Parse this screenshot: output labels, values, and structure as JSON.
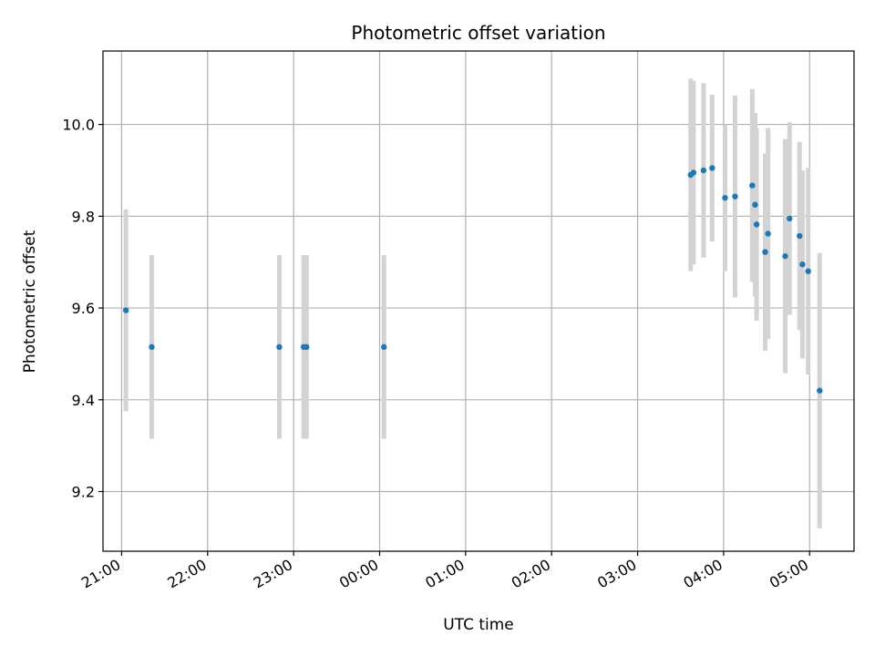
{
  "chart_data": {
    "type": "scatter",
    "title": "Photometric offset variation",
    "xlabel": "UTC time",
    "ylabel": "Photometric offset",
    "x_axis": "time",
    "xlim": [
      "20:47",
      "05:31"
    ],
    "ylim": [
      9.07,
      10.16
    ],
    "xticks": [
      "21:00",
      "22:00",
      "23:00",
      "00:00",
      "01:00",
      "02:00",
      "03:00",
      "04:00",
      "05:00"
    ],
    "yticks": [
      9.2,
      9.4,
      9.6,
      9.8,
      10.0
    ],
    "ytick_labels": [
      "9.2",
      "9.4",
      "9.6",
      "9.8",
      "10.0"
    ],
    "grid": true,
    "legend": "none",
    "colors": {
      "marker": "#1f77b4",
      "errorbar": "#d3d3d3",
      "grid": "#b0b0b0"
    },
    "points": [
      {
        "x": "21:03",
        "y": 9.595,
        "yerr": 0.22
      },
      {
        "x": "21:21",
        "y": 9.515,
        "yerr": 0.2
      },
      {
        "x": "22:50",
        "y": 9.515,
        "yerr": 0.2
      },
      {
        "x": "23:07",
        "y": 9.515,
        "yerr": 0.2
      },
      {
        "x": "23:09",
        "y": 9.515,
        "yerr": 0.2
      },
      {
        "x": "00:03",
        "y": 9.515,
        "yerr": 0.2
      },
      {
        "x": "03:37",
        "y": 9.89,
        "yerr": 0.21
      },
      {
        "x": "03:39",
        "y": 9.895,
        "yerr": 0.2
      },
      {
        "x": "03:46",
        "y": 9.9,
        "yerr": 0.19
      },
      {
        "x": "03:52",
        "y": 9.905,
        "yerr": 0.16
      },
      {
        "x": "04:01",
        "y": 9.84,
        "yerr": 0.16
      },
      {
        "x": "04:08",
        "y": 9.843,
        "yerr": 0.22
      },
      {
        "x": "04:20",
        "y": 9.867,
        "yerr": 0.21
      },
      {
        "x": "04:22",
        "y": 9.825,
        "yerr": 0.2
      },
      {
        "x": "04:23",
        "y": 9.782,
        "yerr": 0.21
      },
      {
        "x": "04:29",
        "y": 9.722,
        "yerr": 0.215
      },
      {
        "x": "04:31",
        "y": 9.762,
        "yerr": 0.23
      },
      {
        "x": "04:43",
        "y": 9.713,
        "yerr": 0.255
      },
      {
        "x": "04:46",
        "y": 9.795,
        "yerr": 0.21
      },
      {
        "x": "04:53",
        "y": 9.757,
        "yerr": 0.205
      },
      {
        "x": "04:55",
        "y": 9.695,
        "yerr": 0.205
      },
      {
        "x": "04:59",
        "y": 9.68,
        "yerr": 0.225
      },
      {
        "x": "05:07",
        "y": 9.42,
        "yerr": 0.3
      }
    ]
  }
}
